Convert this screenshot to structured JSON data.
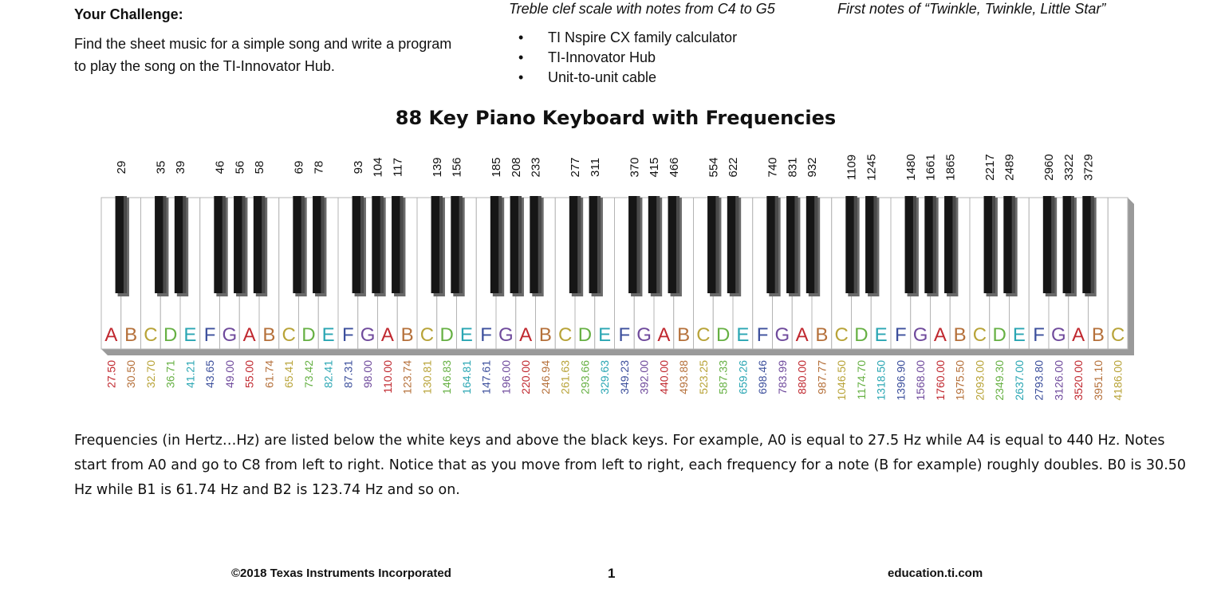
{
  "header": {
    "challenge_heading": "Your Challenge:",
    "challenge_text": "Find the sheet music for a simple song and write a program to play the song on the TI-Innovator Hub.",
    "treble_caption": "Treble clef scale with notes from C4 to G5",
    "twinkle_caption": "First notes of “Twinkle, Twinkle, Little Star”"
  },
  "materials": [
    "TI Nspire CX family calculator",
    "TI-Innovator Hub",
    "Unit-to-unit cable"
  ],
  "keyboard": {
    "title": "88 Key Piano Keyboard with Frequencies",
    "white_notes": [
      "A",
      "B",
      "C",
      "D",
      "E",
      "F",
      "G",
      "A",
      "B",
      "C",
      "D",
      "E",
      "F",
      "G",
      "A",
      "B",
      "C",
      "D",
      "E",
      "F",
      "G",
      "A",
      "B",
      "C",
      "D",
      "E",
      "F",
      "G",
      "A",
      "B",
      "C",
      "D",
      "E",
      "F",
      "G",
      "A",
      "B",
      "C",
      "D",
      "E",
      "F",
      "G",
      "A",
      "B",
      "C",
      "D",
      "E",
      "F",
      "G",
      "A",
      "B",
      "C"
    ],
    "white_freqs": [
      "27.50",
      "30.50",
      "32.70",
      "36.71",
      "41.21",
      "43.65",
      "49.00",
      "55.00",
      "61.74",
      "65.41",
      "73.42",
      "82.41",
      "87.31",
      "98.00",
      "110.00",
      "123.74",
      "130.81",
      "146.83",
      "164.81",
      "147.61",
      "196.00",
      "220.00",
      "246.94",
      "261.63",
      "293.66",
      "329.63",
      "349.23",
      "392.00",
      "440.00",
      "493.88",
      "523.25",
      "587.33",
      "659.26",
      "698.46",
      "783.99",
      "880.00",
      "987.77",
      "1046.50",
      "1174.70",
      "1318.50",
      "1396.90",
      "1568.00",
      "1760.00",
      "1975.50",
      "2093.00",
      "2349.30",
      "2637.00",
      "2793.80",
      "3126.00",
      "3520.00",
      "3951.10",
      "4186.00"
    ],
    "black_freqs": [
      "29",
      "35",
      "39",
      "46",
      "56",
      "58",
      "69",
      "78",
      "93",
      "104",
      "117",
      "139",
      "156",
      "185",
      "208",
      "233",
      "277",
      "311",
      "370",
      "415",
      "466",
      "554",
      "622",
      "740",
      "831",
      "932",
      "1109",
      "1245",
      "1480",
      "1661",
      "1865",
      "2217",
      "2489",
      "2960",
      "3322",
      "3729"
    ],
    "note_colors": {
      "A": "#c0282f",
      "B": "#b5703a",
      "C": "#b8a338",
      "D": "#66b043",
      "E": "#2aa6b3",
      "F": "#3c4f9c",
      "G": "#6f4a9c"
    },
    "key_colors": {
      "white": "#ffffff",
      "black": "#161616",
      "black_highlight": "#4a4a4a",
      "outline": "#b4b4b4"
    }
  },
  "description": "Frequencies (in Hertz…Hz) are listed below the white keys and above the black keys. For example, A0 is equal to 27.5 Hz while A4 is equal to 440 Hz. Notes start from A0 and go to C8 from left to right. Notice that as you move from left to right, each frequency for a note (B for example) roughly doubles. B0 is 30.50 Hz while B1 is 61.74 Hz and B2 is 123.74 Hz and so on.",
  "footer": {
    "copyright": "©2018 Texas Instruments Incorporated",
    "page_number": "1",
    "site": "education.ti.com"
  }
}
